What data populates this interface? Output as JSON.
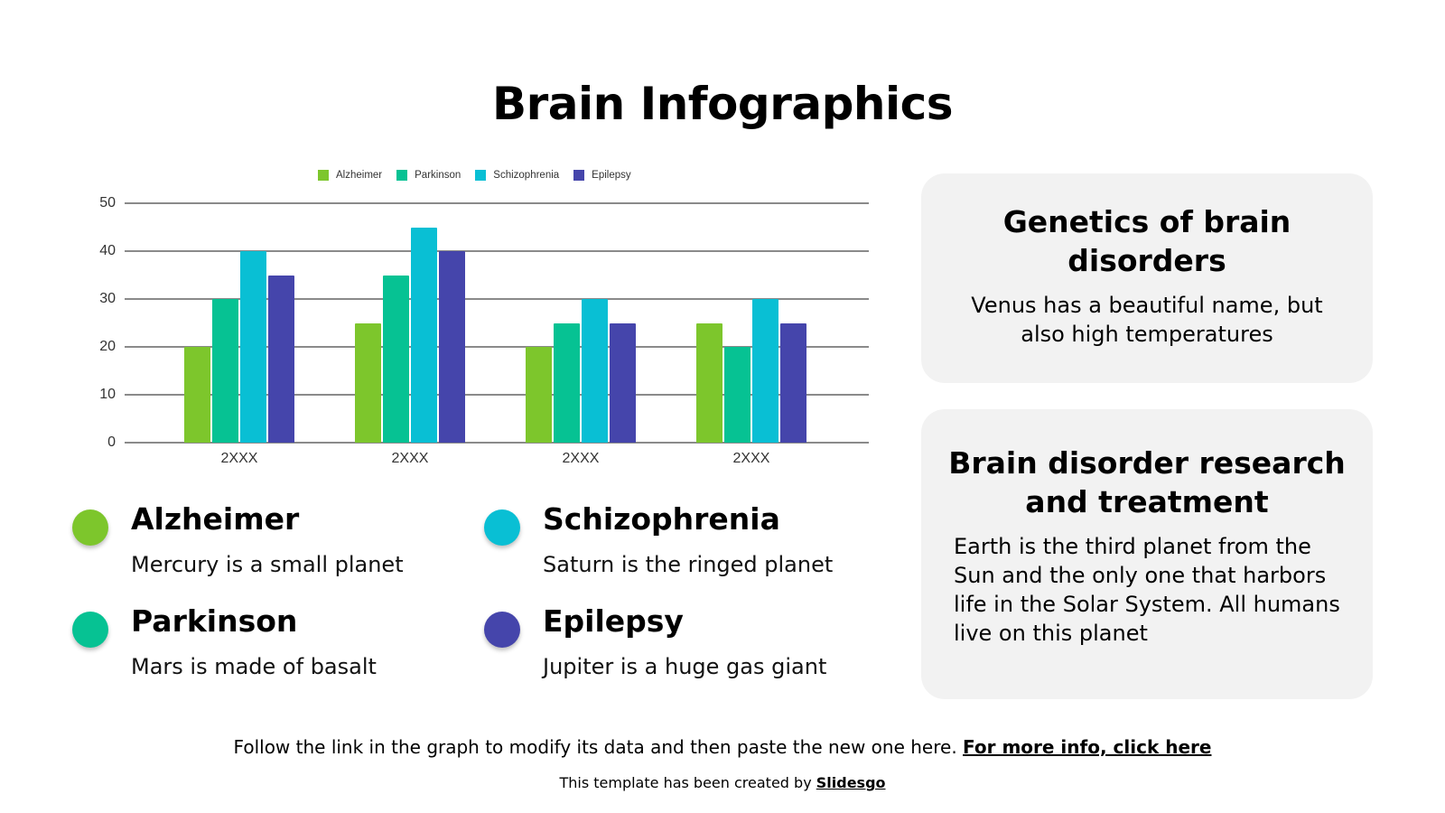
{
  "title": "Brain Infographics",
  "colors": {
    "alzheimer": "#7dc62c",
    "parkinson": "#06c293",
    "schizophrenia": "#09bfd4",
    "epilepsy": "#4545ab"
  },
  "chart_data": {
    "type": "bar",
    "title": "",
    "xlabel": "",
    "ylabel": "",
    "categories": [
      "2XXX",
      "2XXX",
      "2XXX",
      "2XXX"
    ],
    "series": [
      {
        "name": "Alzheimer",
        "color": "#7dc62c",
        "values": [
          20,
          25,
          20,
          25
        ]
      },
      {
        "name": "Parkinson",
        "color": "#06c293",
        "values": [
          30,
          35,
          25,
          20
        ]
      },
      {
        "name": "Schizophrenia",
        "color": "#09bfd4",
        "values": [
          40,
          45,
          30,
          30
        ]
      },
      {
        "name": "Epilepsy",
        "color": "#4545ab",
        "values": [
          35,
          40,
          25,
          25
        ]
      }
    ],
    "ylim": [
      0,
      50
    ],
    "yticks": [
      0,
      10,
      20,
      30,
      40,
      50
    ],
    "grid": true,
    "legend_position": "top"
  },
  "diseases": [
    {
      "name": "Alzheimer",
      "desc": "Mercury is a small planet"
    },
    {
      "name": "Schizophrenia",
      "desc": "Saturn is the ringed planet"
    },
    {
      "name": "Parkinson",
      "desc": "Mars is made of basalt"
    },
    {
      "name": "Epilepsy",
      "desc": "Jupiter is a huge gas giant"
    }
  ],
  "cards": [
    {
      "title": "Genetics of brain disorders",
      "text": "Venus has a beautiful name, but also high temperatures"
    },
    {
      "title": "Brain disorder research and treatment",
      "text": "Earth is the third planet from the Sun and the only one that harbors life in the Solar System. All humans live on this planet"
    }
  ],
  "footer": {
    "instruction": "Follow the link in the graph to modify its data and then paste the new one here. ",
    "link_text": "For more info, click here",
    "credit_prefix": "This template has been created by ",
    "credit_link": "Slidesgo"
  }
}
